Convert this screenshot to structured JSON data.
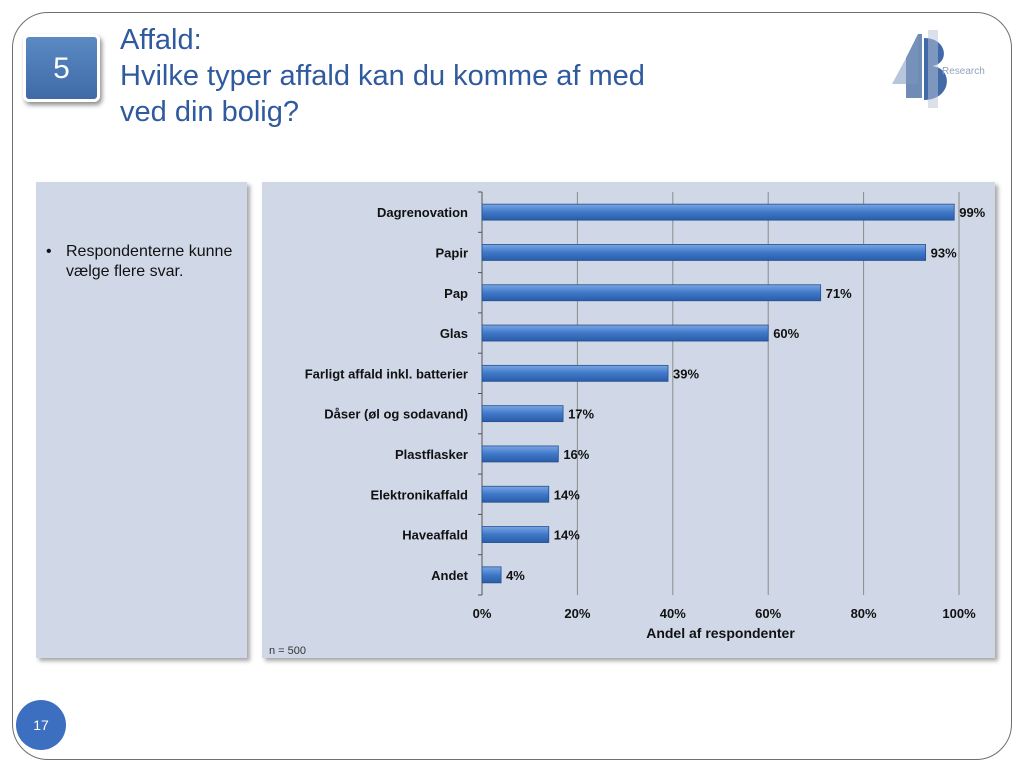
{
  "slide": {
    "section_number": "5",
    "title_lines": [
      "Affald:",
      "Hvilke typer affald kan du komme af med",
      "ved din bolig?"
    ],
    "logo_text": "Research",
    "bullet": "Respondenterne kunne vælge flere svar.",
    "page_number": "17",
    "colors": {
      "title": "#2f5a9e",
      "panel": "#d0d8e7",
      "bar": "#3f78c8",
      "page_badge": "#3c6fc0"
    }
  },
  "chart_data": {
    "type": "bar",
    "orientation": "horizontal",
    "categories": [
      "Dagrenovation",
      "Papir",
      "Pap",
      "Glas",
      "Farligt affald inkl. batterier",
      "Dåser (øl og sodavand)",
      "Plastflasker",
      "Elektronikaffald",
      "Haveaffald",
      "Andet"
    ],
    "values": [
      99,
      93,
      71,
      60,
      39,
      17,
      16,
      14,
      14,
      4
    ],
    "data_labels": [
      "99%",
      "93%",
      "71%",
      "60%",
      "39%",
      "17%",
      "16%",
      "14%",
      "14%",
      "4%"
    ],
    "xlim": [
      0,
      100
    ],
    "x_ticks": [
      "0%",
      "20%",
      "40%",
      "60%",
      "80%",
      "100%"
    ],
    "xlabel": "Andel af respondenter",
    "ylabel": "",
    "note": "n = 500",
    "grid": "vertical",
    "legend": "none"
  }
}
